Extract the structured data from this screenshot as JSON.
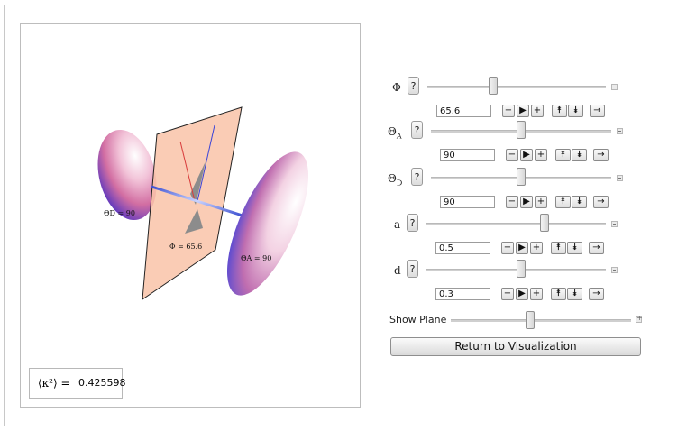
{
  "kappa": {
    "label": "⟨κ²⟩ =",
    "value": "0.425598"
  },
  "scene": {
    "label_D": "ΘD = 90",
    "label_A": "ΘA = 90",
    "label_phi": "Φ = 65.6"
  },
  "controls": {
    "phi": {
      "label": "Φ",
      "help": "?",
      "value": "65.6",
      "fraction": 0.37
    },
    "theta_a": {
      "label": "Θ",
      "sub": "A",
      "help": "?",
      "value": "90",
      "fraction": 0.5
    },
    "theta_d": {
      "label": "Θ",
      "sub": "D",
      "help": "?",
      "value": "90",
      "fraction": 0.5
    },
    "a": {
      "label": "a",
      "help": "?",
      "value": "0.5",
      "fraction": 0.66
    },
    "d": {
      "label": "d",
      "help": "?",
      "value": "0.3",
      "fraction": 0.53
    }
  },
  "buttons": {
    "minus": "−",
    "play": "▶",
    "plus": "+",
    "up": "⯭",
    "down": "⯯",
    "last": "→"
  },
  "show_plane": {
    "label": "Show Plane",
    "fraction": 0.44
  },
  "return_button": "Return to Visualization"
}
